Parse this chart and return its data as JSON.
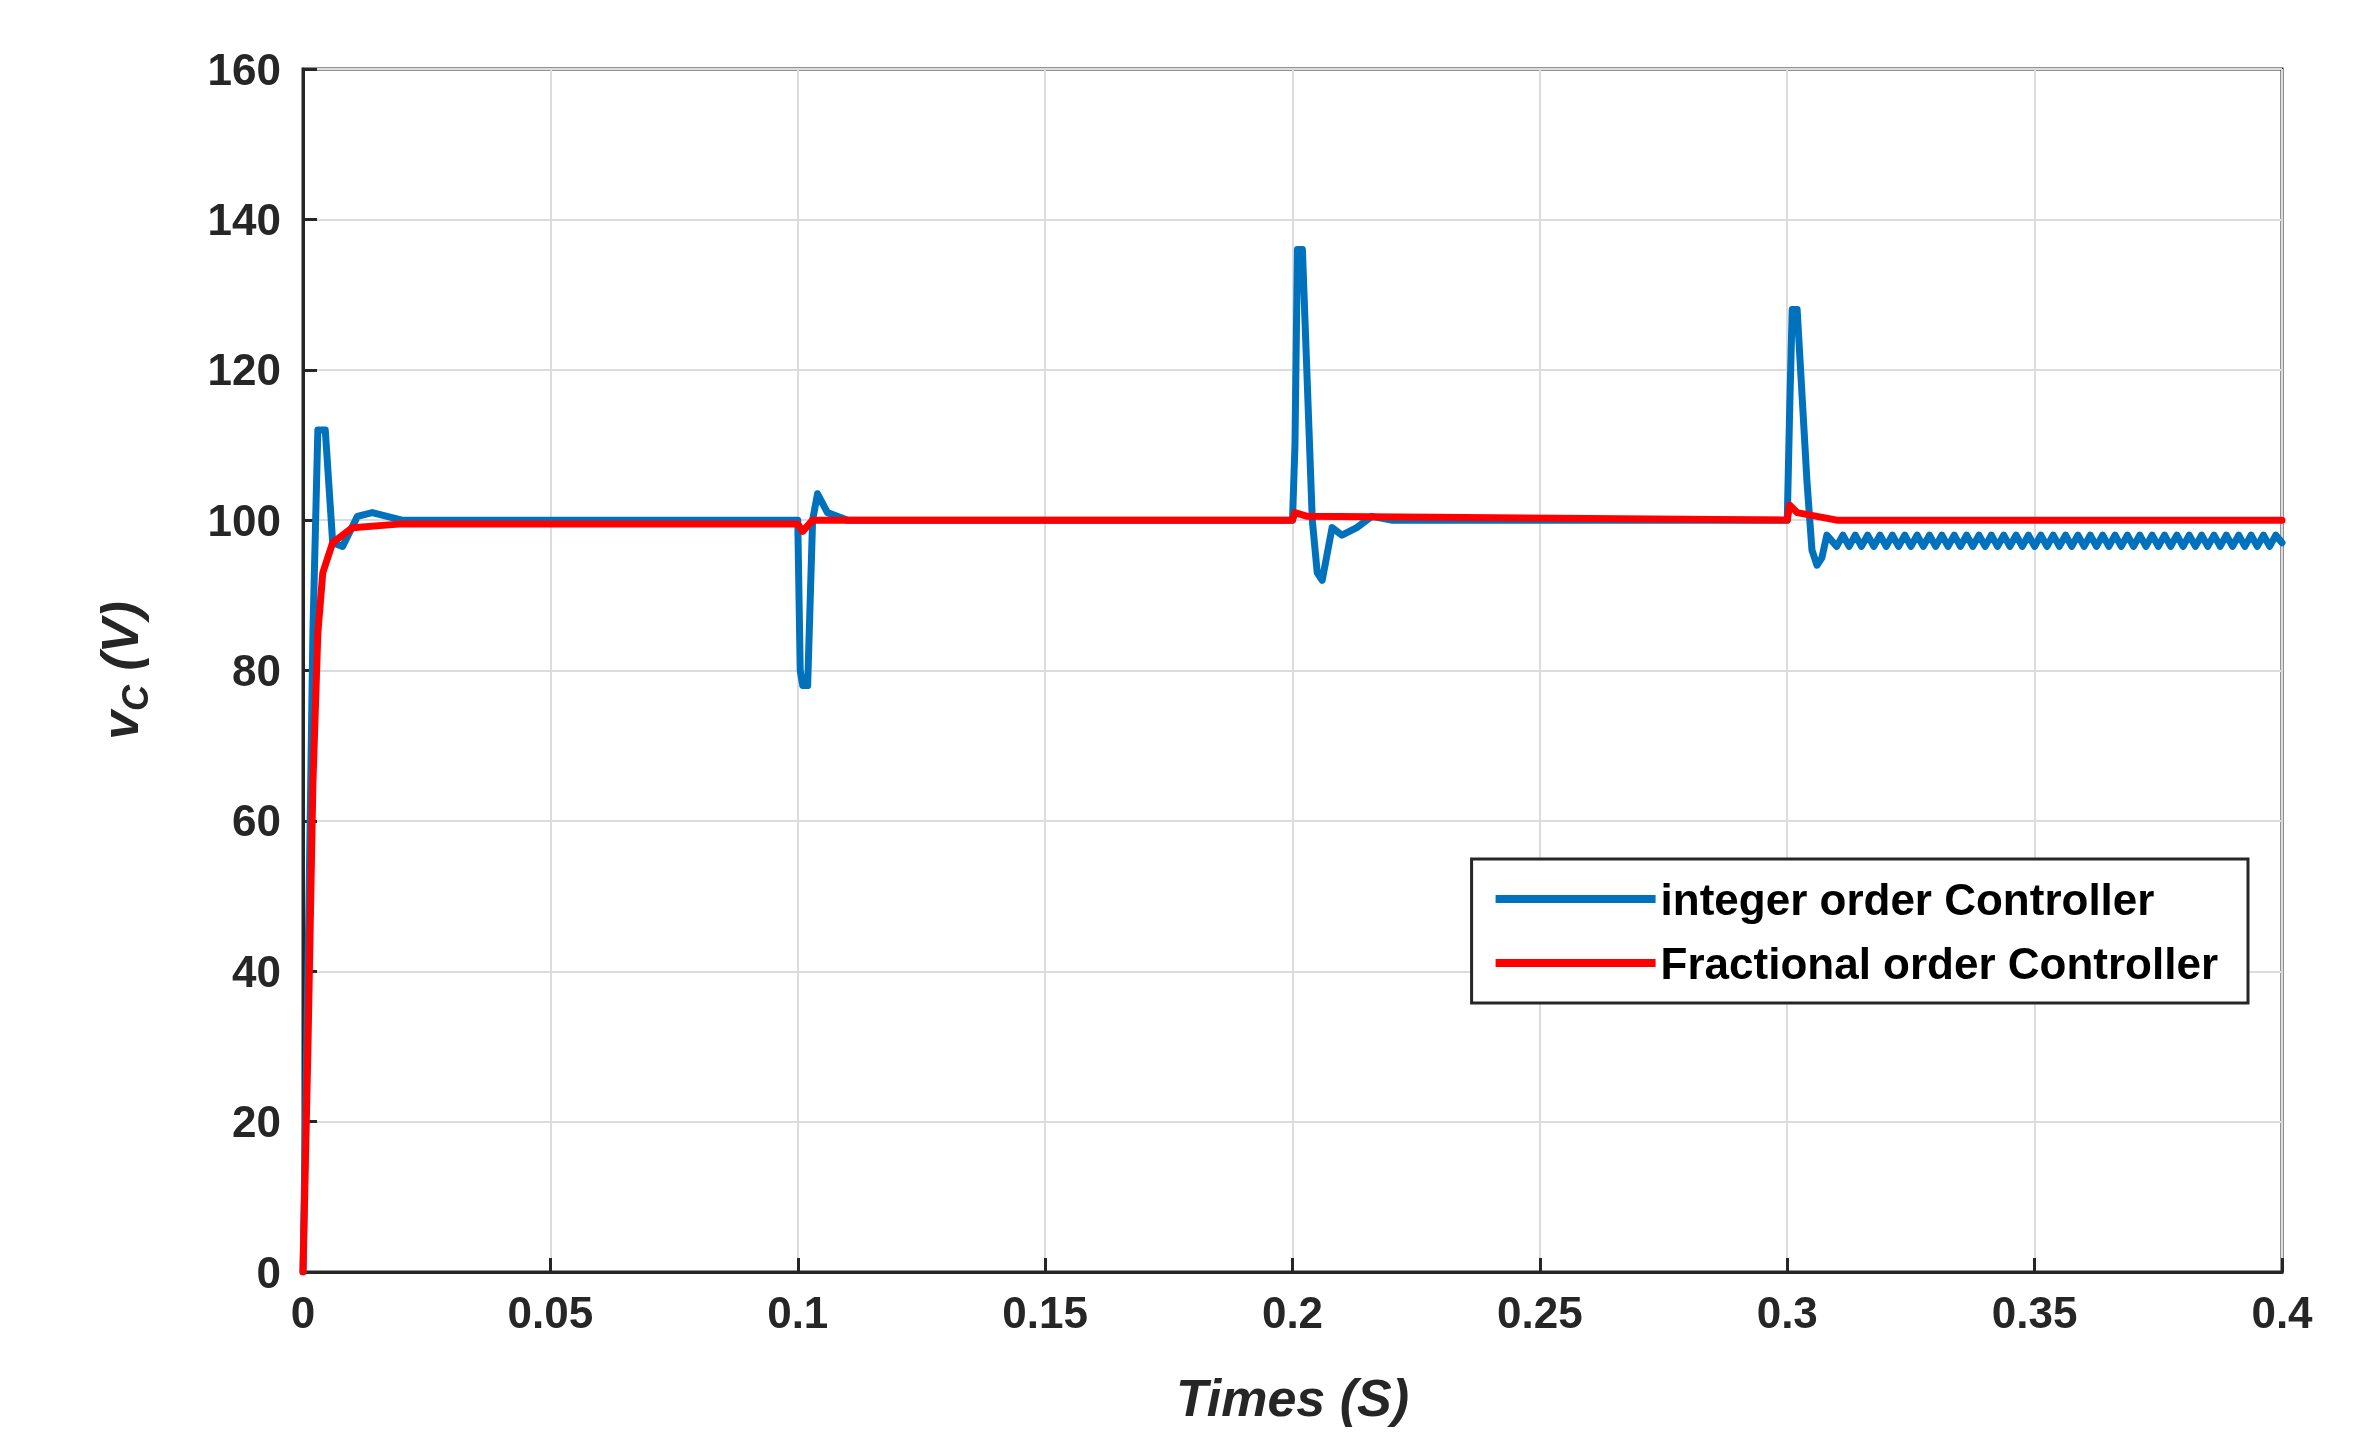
{
  "chart_data": {
    "type": "line",
    "xlabel": "Times (S)",
    "ylabel": "v$_{C}$ (V)",
    "xlim": [
      0,
      0.4
    ],
    "xticks": [
      0,
      0.05,
      0.1,
      0.15,
      0.2,
      0.25,
      0.3,
      0.35,
      0.4
    ],
    "ylim": [
      0,
      160
    ],
    "yticks": [
      0,
      20,
      40,
      60,
      80,
      100,
      120,
      140,
      160
    ],
    "grid": true,
    "legend": "bottom right",
    "series": [
      {
        "name": "integer order Controller",
        "color": "#0072bd",
        "x": [
          0,
          0.001,
          0.002,
          0.003,
          0.0045,
          0.006,
          0.008,
          0.011,
          0.014,
          0.02,
          0.1,
          0.1005,
          0.101,
          0.102,
          0.103,
          0.104,
          0.106,
          0.11,
          0.2,
          0.2005,
          0.201,
          0.202,
          0.204,
          0.205,
          0.206,
          0.208,
          0.21,
          0.213,
          0.216,
          0.22,
          0.3,
          0.3005,
          0.301,
          0.302,
          0.304,
          0.305,
          0.306,
          0.307,
          0.308,
          0.31,
          0.31125,
          0.3125,
          0.31375,
          0.315,
          0.31625,
          0.3175,
          0.31875,
          0.32,
          0.32125,
          0.3225,
          0.32375,
          0.325,
          0.32625,
          0.3275,
          0.32875,
          0.33,
          0.33125,
          0.3325,
          0.33375,
          0.335,
          0.33625,
          0.3375,
          0.33875,
          0.34,
          0.34125,
          0.3425,
          0.34375,
          0.345,
          0.34625,
          0.3475,
          0.34875,
          0.35,
          0.35125,
          0.3525,
          0.35375,
          0.355,
          0.35625,
          0.3575,
          0.35875,
          0.36,
          0.36125,
          0.3625,
          0.36375,
          0.365,
          0.36625,
          0.3675,
          0.36875,
          0.37,
          0.37125,
          0.3725,
          0.37375,
          0.375,
          0.37625,
          0.3775,
          0.37875,
          0.38,
          0.38125,
          0.3825,
          0.38375,
          0.385,
          0.38625,
          0.3875,
          0.38875,
          0.39,
          0.39125,
          0.3925,
          0.39375,
          0.395,
          0.39625,
          0.3975,
          0.39875,
          0.4
        ],
        "values": [
          0,
          40,
          85,
          112,
          112,
          97,
          96.5,
          100.5,
          101,
          100,
          100,
          80,
          78,
          78,
          100,
          103.5,
          101,
          100,
          100,
          110,
          136,
          136,
          100,
          93,
          92,
          99,
          98,
          99,
          100.5,
          100,
          100,
          115,
          128,
          128,
          105,
          96,
          94,
          95,
          98,
          96.5,
          98,
          96.5,
          98,
          96.5,
          98,
          96.5,
          98,
          96.5,
          98,
          96.5,
          98,
          96.5,
          98,
          96.5,
          98,
          96.5,
          98,
          96.5,
          98,
          96.5,
          98,
          96.5,
          98,
          96.5,
          98,
          96.5,
          98,
          96.5,
          98,
          96.5,
          98,
          96.5,
          98,
          96.5,
          98,
          96.5,
          98,
          96.5,
          98,
          96.5,
          98,
          96.5,
          98,
          96.5,
          98,
          96.5,
          98,
          96.5,
          98,
          96.5,
          98,
          96.5,
          98,
          96.5,
          98,
          96.5,
          98,
          96.5,
          98,
          96.5,
          98,
          96.5,
          98,
          96.5,
          98,
          96.5,
          98,
          96.5,
          98,
          96.5,
          98,
          97
        ]
      },
      {
        "name": "Fractional order Controller",
        "color": "#ff0000",
        "x": [
          0,
          0.001,
          0.002,
          0.003,
          0.004,
          0.006,
          0.01,
          0.02,
          0.1,
          0.101,
          0.103,
          0.2,
          0.2005,
          0.203,
          0.3,
          0.3005,
          0.302,
          0.31,
          0.4
        ],
        "values": [
          0,
          30,
          65,
          85,
          93,
          97,
          99,
          99.5,
          99.5,
          98.5,
          100,
          100,
          101,
          100.5,
          100,
          102,
          101,
          100,
          100
        ]
      }
    ]
  }
}
